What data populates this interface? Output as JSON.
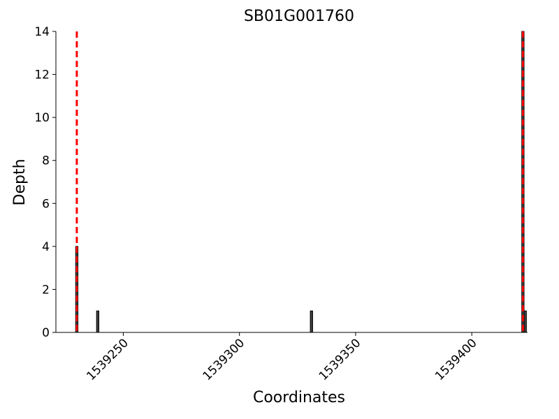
{
  "chart_data": {
    "type": "bar",
    "title": "SB01G001760",
    "xlabel": "Coordinates",
    "ylabel": "Depth",
    "x": [
      1539230,
      1539239,
      1539331,
      1539422,
      1539423
    ],
    "values": [
      4,
      1,
      1,
      14,
      1
    ],
    "color": "#404040",
    "vlines": [
      1539230,
      1539422
    ],
    "vline_color": "#ff0000",
    "xlim": [
      1539221,
      1539424
    ],
    "xticks": [
      1539250,
      1539300,
      1539350,
      1539400
    ],
    "ylim": [
      0,
      14
    ],
    "yticks": [
      0,
      2,
      4,
      6,
      8,
      10,
      12,
      14
    ],
    "grid": false
  }
}
